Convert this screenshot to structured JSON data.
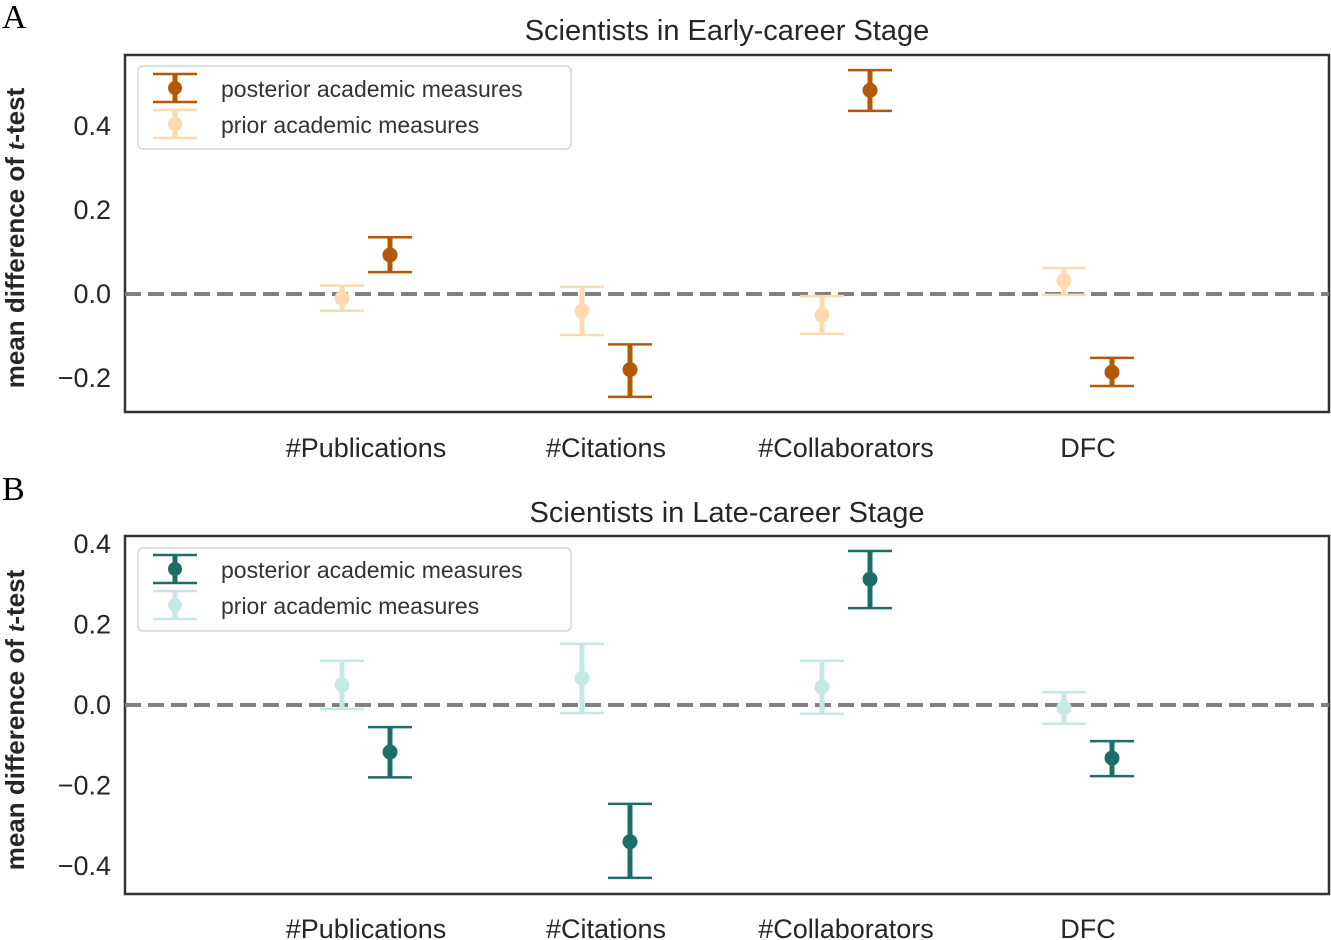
{
  "chart_data": [
    {
      "panel": "A",
      "type": "scatter",
      "subtype": "errorbar",
      "title": "Scientists in Early-career Stage",
      "xlabel": "",
      "ylabel": "mean difference of t-test",
      "ylim": [
        -0.28,
        0.56
      ],
      "yticks": [
        -0.2,
        0.0,
        0.2,
        0.4
      ],
      "ytick_labels": [
        "−0.2",
        "0.0",
        "0.2",
        "0.4"
      ],
      "categories": [
        "#Publications",
        "#Citations",
        "#Collaborators",
        "DFC"
      ],
      "reference_line": {
        "y": 0.0,
        "style": "dashed",
        "color": "#808080"
      },
      "legend": {
        "position": "upper left",
        "entries": [
          "posterior academic measures",
          "prior academic measures"
        ]
      },
      "series": [
        {
          "name": "posterior academic measures",
          "color": "#B35806",
          "values": [
            0.093,
            -0.18,
            0.485,
            -0.186
          ],
          "ci_upper": [
            0.135,
            -0.12,
            0.533,
            -0.152
          ],
          "ci_lower": [
            0.052,
            -0.245,
            0.436,
            -0.219
          ]
        },
        {
          "name": "prior academic measures",
          "color": "#FDDBAE",
          "values": [
            -0.01,
            -0.04,
            -0.05,
            0.031
          ],
          "ci_upper": [
            0.02,
            0.017,
            -0.005,
            0.062
          ],
          "ci_lower": [
            -0.04,
            -0.098,
            -0.095,
            -0.002
          ]
        }
      ]
    },
    {
      "panel": "B",
      "type": "scatter",
      "subtype": "errorbar",
      "title": "Scientists in Late-career Stage",
      "xlabel": "",
      "ylabel": "mean difference of t-test",
      "ylim": [
        -0.47,
        0.42
      ],
      "yticks": [
        -0.4,
        -0.2,
        0.0,
        0.2,
        0.4
      ],
      "ytick_labels": [
        "−0.4",
        "−0.2",
        "0.0",
        "0.2",
        "0.4"
      ],
      "categories": [
        "#Publications",
        "#Citations",
        "#Collaborators",
        "DFC"
      ],
      "reference_line": {
        "y": 0.0,
        "style": "dashed",
        "color": "#808080"
      },
      "legend": {
        "position": "upper left",
        "entries": [
          "posterior academic measures",
          "prior academic measures"
        ]
      },
      "series": [
        {
          "name": "posterior academic measures",
          "color": "#1B6F66",
          "values": [
            -0.117,
            -0.34,
            0.313,
            -0.132
          ],
          "ci_upper": [
            -0.055,
            -0.246,
            0.383,
            -0.09
          ],
          "ci_lower": [
            -0.18,
            -0.43,
            0.241,
            -0.177
          ]
        },
        {
          "name": "prior academic measures",
          "color": "#C6E8E4",
          "values": [
            0.05,
            0.067,
            0.045,
            -0.007
          ],
          "ci_upper": [
            0.11,
            0.152,
            0.11,
            0.032
          ],
          "ci_lower": [
            -0.01,
            -0.02,
            -0.022,
            -0.047
          ]
        }
      ]
    }
  ],
  "labels": {
    "panel_a": "A",
    "panel_b": "B",
    "title_a": "Scientists in Early-career Stage",
    "title_b": "Scientists in Late-career Stage",
    "ylabel_prefix": "mean difference of ",
    "ylabel_t": "t",
    "ylabel_suffix": "-test",
    "legend_posterior": "posterior academic measures",
    "legend_prior": "prior academic measures"
  }
}
